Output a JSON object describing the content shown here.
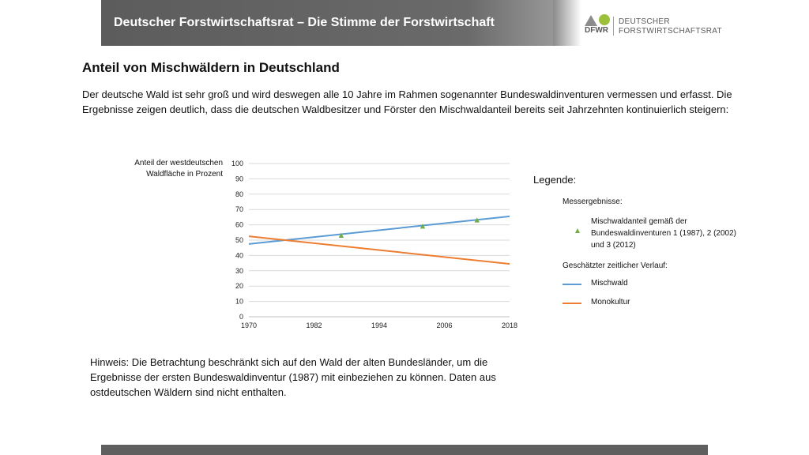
{
  "header": {
    "title": "Deutscher Forstwirtschaftsrat – Die Stimme der Forstwirtschaft",
    "logo": {
      "abbr": "DFWR",
      "line1": "DEUTSCHER",
      "line2": "FORSTWIRTSCHAFTSRAT",
      "colors": {
        "grey": "#8c8c8c",
        "green": "#9dc03b"
      }
    }
  },
  "page": {
    "title": "Anteil von Mischwäldern in Deutschland",
    "intro": "Der deutsche Wald ist sehr groß und wird deswegen alle 10 Jahre im Rahmen sogenannter Bundeswaldinventuren vermessen und erfasst. Die Ergebnisse zeigen deutlich, dass die deutschen Waldbesitzer und Förster den Mischwaldanteil bereits seit Jahrzehnten kontinuierlich steigern:",
    "note": "Hinweis: Die Betrachtung beschränkt sich auf den Wald der alten Bundesländer, um die Ergebnisse der ersten Bundeswaldinventur (1987) mit einbeziehen zu können. Daten aus ostdeutschen Wäldern sind nicht enthalten."
  },
  "legend": {
    "title": "Legende:",
    "measured_header": "Messergebnisse:",
    "measured_label": "Mischwaldanteil gemäß der Bundeswaldinventuren 1 (1987), 2 (2002) und 3 (2012)",
    "estimated_header": "Geschätzter zeitlicher Verlauf:",
    "line1_label": "Mischwald",
    "line2_label": "Monokultur"
  },
  "chart_data": {
    "type": "line",
    "ylabel": "Anteil der westdeutschen Waldfläche in Prozent",
    "xlim": [
      1970,
      2018
    ],
    "ylim": [
      0,
      100
    ],
    "xticks": [
      1970,
      1982,
      1994,
      2006,
      2018
    ],
    "yticks": [
      0,
      10,
      20,
      30,
      40,
      50,
      60,
      70,
      80,
      90,
      100
    ],
    "grid": "horizontal",
    "legend_position": "right",
    "series": [
      {
        "name": "Mischwald",
        "color": "#5b9bd5",
        "x": [
          1970,
          2018
        ],
        "y": [
          47.5,
          65.5
        ]
      },
      {
        "name": "Monokultur",
        "color": "#ed7d31",
        "x": [
          1970,
          2018
        ],
        "y": [
          52.5,
          34.5
        ]
      }
    ],
    "markers": {
      "name": "Mischwaldanteil gemäß der Bundeswaldinventuren 1 (1987), 2 (2002) und 3 (2012)",
      "color": "#70ad47",
      "x": [
        1987,
        2002,
        2012
      ],
      "y": [
        53,
        59,
        63
      ]
    }
  }
}
